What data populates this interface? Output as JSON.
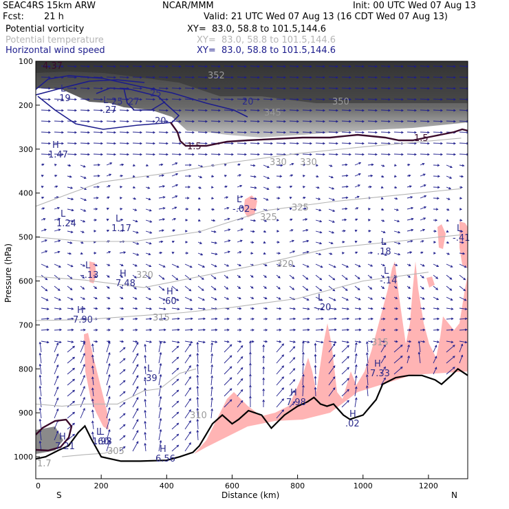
{
  "header": {
    "model": "SEAC4RS 15km ARW",
    "source": "NCAR/MMM",
    "init": "Init: 00 UTC Wed 07 Aug 13",
    "fcst_label": "Fcst:",
    "fcst_value": "21 h",
    "valid": "Valid: 21 UTC Wed 07 Aug 13 (16 CDT Wed 07 Aug 13)"
  },
  "fields": [
    {
      "name": "Potential vorticity",
      "xy": "XY=  83.0, 58.8 to 101.5,144.6",
      "color": "#000000"
    },
    {
      "name": "Potential temperature",
      "xy": "XY=  83.0, 58.8 to 101.5,144.6",
      "color": "#b4b4b4"
    },
    {
      "name": "Horizontal wind speed",
      "xy": "XY=  83.0, 58.8 to 101.5,144.6",
      "color": "#1c1c8c"
    }
  ],
  "chart_data": {
    "type": "cross-section",
    "xlabel": "Distance (km)",
    "ylabel": "Pressure (hPa)",
    "xlim": [
      0,
      1320
    ],
    "ylim": [
      1050,
      100
    ],
    "x_ticks": [
      0,
      200,
      400,
      600,
      800,
      1000,
      1200
    ],
    "y_ticks": [
      100,
      200,
      300,
      400,
      500,
      600,
      700,
      800,
      900,
      1000
    ],
    "x_end_labels": {
      "left": "S",
      "right": "N"
    },
    "terrain": [
      [
        0,
        1005
      ],
      [
        30,
        1000
      ],
      [
        70,
        985
      ],
      [
        100,
        975
      ],
      [
        130,
        945
      ],
      [
        150,
        930
      ],
      [
        170,
        960
      ],
      [
        200,
        1000
      ],
      [
        260,
        1010
      ],
      [
        320,
        1010
      ],
      [
        400,
        1008
      ],
      [
        440,
        1000
      ],
      [
        480,
        990
      ],
      [
        500,
        975
      ],
      [
        540,
        925
      ],
      [
        570,
        905
      ],
      [
        600,
        925
      ],
      [
        620,
        915
      ],
      [
        650,
        895
      ],
      [
        690,
        905
      ],
      [
        720,
        935
      ],
      [
        760,
        905
      ],
      [
        800,
        885
      ],
      [
        830,
        875
      ],
      [
        850,
        865
      ],
      [
        870,
        880
      ],
      [
        890,
        885
      ],
      [
        910,
        880
      ],
      [
        940,
        905
      ],
      [
        960,
        915
      ],
      [
        980,
        910
      ],
      [
        1000,
        905
      ],
      [
        1040,
        870
      ],
      [
        1060,
        835
      ],
      [
        1100,
        820
      ],
      [
        1140,
        815
      ],
      [
        1180,
        815
      ],
      [
        1220,
        825
      ],
      [
        1240,
        835
      ],
      [
        1270,
        815
      ],
      [
        1290,
        800
      ],
      [
        1320,
        815
      ]
    ],
    "theta_contours": [
      {
        "value": "305",
        "pts": [
          [
            80,
            1000
          ],
          [
            150,
            995
          ],
          [
            210,
            992
          ],
          [
            240,
            985
          ]
        ],
        "label_at": [
          220,
          985
        ]
      },
      {
        "value": "310",
        "pts": [
          [
            0,
            880
          ],
          [
            80,
            885
          ],
          [
            150,
            880
          ],
          [
            250,
            880
          ],
          [
            330,
            850
          ],
          [
            380,
            845
          ],
          [
            440,
            810
          ],
          [
            490,
            800
          ]
        ],
        "label_at": [
          510,
          880
        ]
      },
      {
        "value": "315",
        "pts": [
          [
            0,
            690
          ],
          [
            150,
            688
          ],
          [
            300,
            680
          ],
          [
            450,
            672
          ],
          [
            600,
            660
          ],
          [
            800,
            640
          ],
          [
            1000,
            600
          ],
          [
            1200,
            580
          ]
        ],
        "label_at": [
          370,
          685
        ]
      },
      {
        "value": "320",
        "pts": [
          [
            0,
            590
          ],
          [
            150,
            598
          ],
          [
            330,
            615
          ],
          [
            500,
            590
          ],
          [
            700,
            560
          ],
          [
            900,
            525
          ],
          [
            1100,
            510
          ],
          [
            1300,
            495
          ]
        ],
        "label_at": [
          780,
          580
        ]
      },
      {
        "value": "325",
        "pts": [
          [
            0,
            500
          ],
          [
            150,
            510
          ],
          [
            300,
            510
          ],
          [
            500,
            488
          ],
          [
            700,
            440
          ],
          [
            900,
            420
          ],
          [
            1100,
            405
          ],
          [
            1300,
            390
          ]
        ],
        "label_at": [
          790,
          440
        ]
      },
      {
        "value": "330",
        "pts": [
          [
            0,
            430
          ],
          [
            100,
            402
          ],
          [
            200,
            375
          ],
          [
            400,
            355
          ],
          [
            600,
            330
          ],
          [
            800,
            310
          ],
          [
            1000,
            295
          ],
          [
            1300,
            275
          ]
        ],
        "label_at": [
          750,
          330
        ]
      }
    ],
    "theta_labels": [
      "305",
      "310",
      "315",
      "320",
      "325",
      "330",
      "330",
      "345",
      "350",
      "352"
    ],
    "wind_contours": [
      "20",
      "25",
      "25",
      "27",
      "20"
    ],
    "pv_contours": [
      "1.5",
      "1.5"
    ],
    "highs_lows": [
      {
        "type": "L",
        "value": ".19"
      },
      {
        "type": "L",
        "value": "-.27"
      },
      {
        "type": "H",
        "value": "1.47"
      },
      {
        "type": "L",
        "value": "1.24"
      },
      {
        "type": "L",
        "value": "1.17"
      },
      {
        "type": "L",
        "value": "-.02"
      },
      {
        "type": "L",
        "value": "-.13"
      },
      {
        "type": "H",
        "value": "7.48"
      },
      {
        "type": "H",
        "value": ".60"
      },
      {
        "type": "H",
        "value": "7.90"
      },
      {
        "type": "L",
        "value": ".39"
      },
      {
        "type": "L",
        "value": ".18"
      },
      {
        "type": "L",
        "value": "-.14"
      },
      {
        "type": "L",
        "value": "-.20"
      },
      {
        "type": "H",
        "value": "7.98"
      },
      {
        "type": "H",
        "value": "7.33"
      },
      {
        "type": "H",
        "value": ".02"
      },
      {
        "type": "H",
        "value": "7.21"
      },
      {
        "type": "L",
        "value": "1.93"
      },
      {
        "type": "L",
        "value": ".60"
      },
      {
        "type": "H",
        "value": "6.56"
      },
      {
        "type": "L",
        "value": "-.41"
      }
    ],
    "top_left_value": "4.37",
    "bottom_left_value": "1.7",
    "colors": {
      "shading": "#4a4a4a",
      "pink": "#ffb4b4",
      "wind": "#1c1c8c",
      "theta": "#b4b4b4",
      "pv": "#3a0a2a",
      "terrain": "#000000"
    }
  }
}
